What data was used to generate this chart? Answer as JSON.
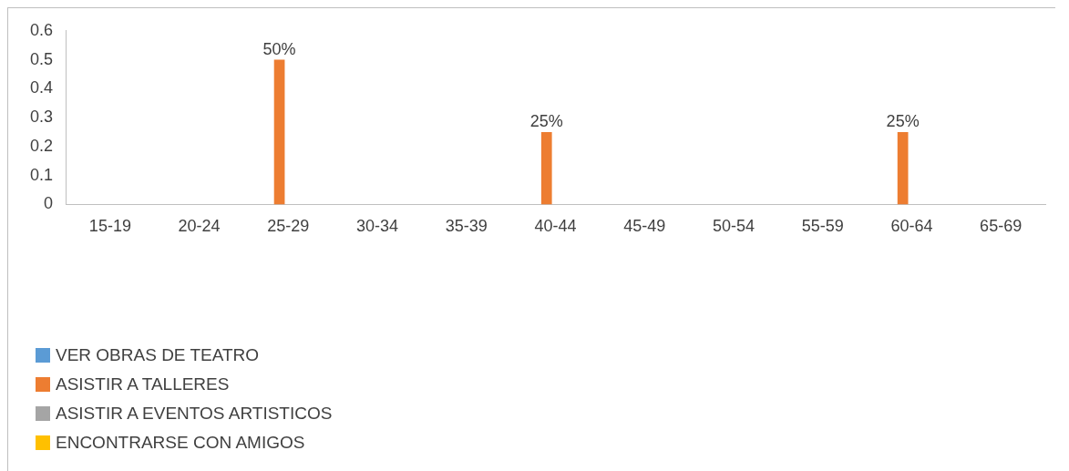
{
  "chart_data": {
    "type": "bar",
    "categories": [
      "15-19",
      "20-24",
      "25-29",
      "30-34",
      "35-39",
      "40-44",
      "45-49",
      "50-54",
      "55-59",
      "60-64",
      "65-69"
    ],
    "series": [
      {
        "name": "VER OBRAS DE TEATRO",
        "color": "#5b9bd5",
        "values": [
          0,
          0,
          0,
          0,
          0,
          0,
          0,
          0,
          0,
          0,
          0
        ]
      },
      {
        "name": "ASISTIR A TALLERES",
        "color": "#ed7d31",
        "values": [
          0,
          0,
          0.5,
          0,
          0,
          0.25,
          0,
          0,
          0,
          0.25,
          0
        ],
        "value_labels": [
          null,
          null,
          "50%",
          null,
          null,
          "25%",
          null,
          null,
          null,
          "25%",
          null
        ]
      },
      {
        "name": "ASISTIR A EVENTOS ARTISTICOS",
        "color": "#a5a5a5",
        "values": [
          0,
          0,
          0,
          0,
          0,
          0,
          0,
          0,
          0,
          0,
          0
        ]
      },
      {
        "name": "ENCONTRARSE CON AMIGOS",
        "color": "#ffc000",
        "values": [
          0,
          0,
          0,
          0,
          0,
          0,
          0,
          0,
          0,
          0,
          0
        ]
      }
    ],
    "ylim": [
      0,
      0.6
    ],
    "yticks": [
      0,
      0.1,
      0.2,
      0.3,
      0.4,
      0.5,
      0.6
    ],
    "grid": false,
    "legend": "bottom left"
  }
}
